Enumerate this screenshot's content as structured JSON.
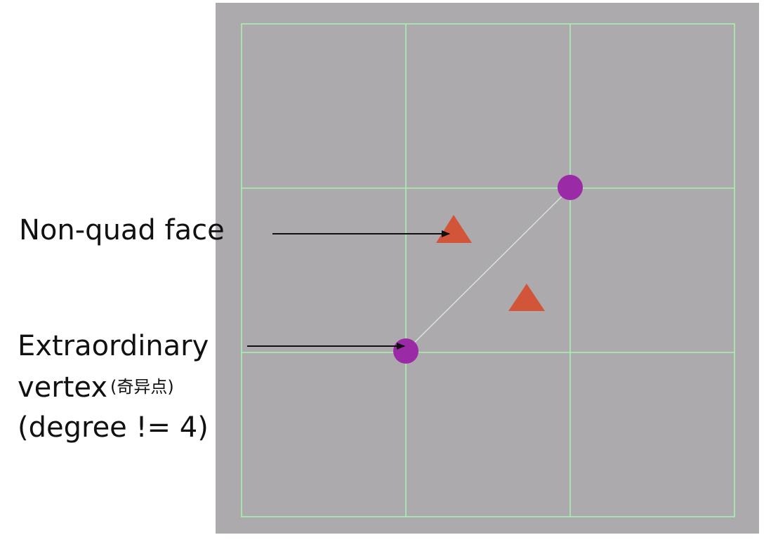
{
  "colors": {
    "page_background": "#ffffff",
    "panel_fill": "#acaaad",
    "grid_line": "#a8f0b0",
    "diagonal_line": "#d8e8d8",
    "vertex_marker": "#9b2aa6",
    "face_marker": "#d2553a",
    "arrow": "#111111",
    "text": "#111111"
  },
  "grid": {
    "rows": 3,
    "columns": 3
  },
  "labels": {
    "non_quad_face": "Non-quad face",
    "extraordinary_line1": "Extraordinary",
    "extraordinary_line2_en": "vertex",
    "extraordinary_line2_cn": "(奇异点)",
    "extraordinary_line3": "(degree != 4)"
  },
  "icons": {
    "vertex_marker": "purple-dot",
    "face_marker": "orange-triangle",
    "arrow": "arrow-right"
  }
}
